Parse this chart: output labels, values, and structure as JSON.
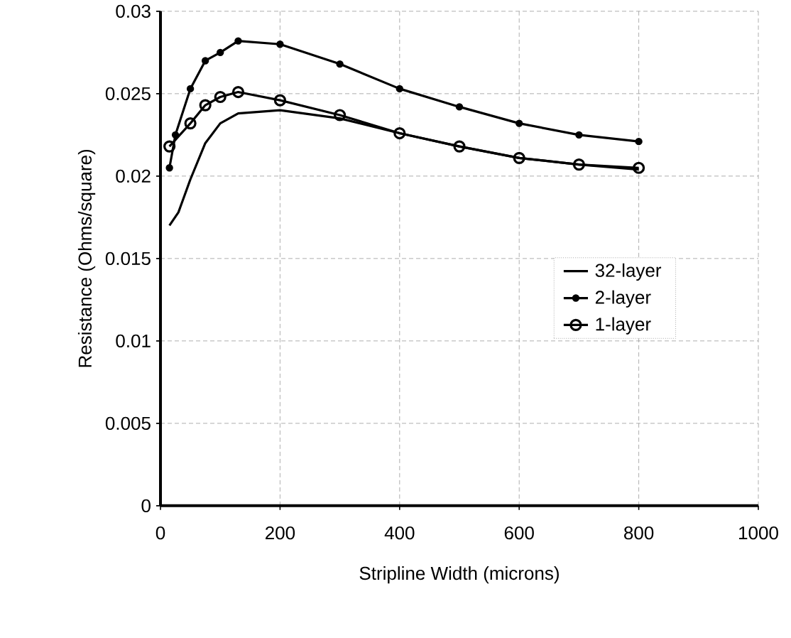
{
  "chart_data": {
    "type": "line",
    "xlabel": "Stripline Width (microns)",
    "ylabel": "Resistance (Ohms/square)",
    "xlim": [
      0,
      1000
    ],
    "ylim": [
      0,
      0.03
    ],
    "xticks": [
      0,
      200,
      400,
      600,
      800,
      1000
    ],
    "yticks": [
      0,
      0.005,
      0.01,
      0.015,
      0.02,
      0.025,
      0.03
    ],
    "grid": true,
    "legend": "center right",
    "series": [
      {
        "name": "32-layer",
        "color": "#000000",
        "marker": "none",
        "x": [
          15,
          30,
          50,
          75,
          100,
          130,
          200,
          300,
          400,
          500,
          600,
          700,
          800
        ],
        "values": [
          0.017,
          0.0178,
          0.0198,
          0.022,
          0.0232,
          0.0238,
          0.024,
          0.0235,
          0.0226,
          0.0218,
          0.0211,
          0.0207,
          0.0204
        ]
      },
      {
        "name": "2-layer",
        "color": "#000000",
        "marker": "diamond",
        "x": [
          15,
          25,
          50,
          75,
          100,
          130,
          200,
          300,
          400,
          500,
          600,
          700,
          800
        ],
        "values": [
          0.0205,
          0.0225,
          0.0253,
          0.027,
          0.0275,
          0.0282,
          0.028,
          0.0268,
          0.0253,
          0.0242,
          0.0232,
          0.0225,
          0.0221
        ]
      },
      {
        "name": "1-layer",
        "color": "#000000",
        "marker": "circle",
        "x": [
          15,
          50,
          75,
          100,
          130,
          200,
          300,
          400,
          500,
          600,
          700,
          800
        ],
        "values": [
          0.0218,
          0.0232,
          0.0243,
          0.0248,
          0.0251,
          0.0246,
          0.0237,
          0.0226,
          0.0218,
          0.0211,
          0.0207,
          0.0205
        ]
      }
    ]
  }
}
